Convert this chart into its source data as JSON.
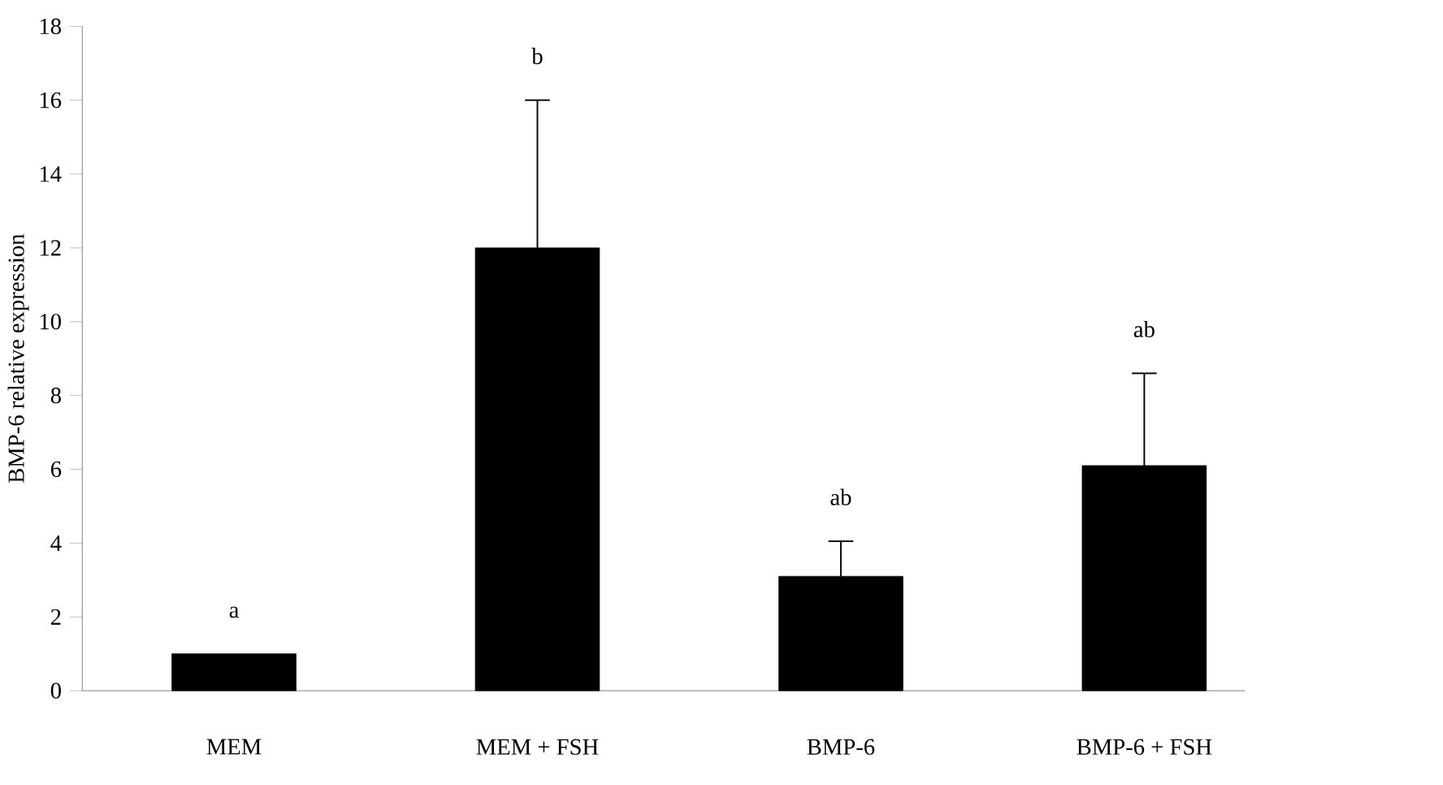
{
  "chart_data": {
    "type": "bar",
    "ylabel": "BMP-6 relative expression",
    "categories": [
      "MEM",
      "MEM + FSH",
      "BMP-6",
      "BMP-6 + FSH"
    ],
    "values": [
      1.0,
      12.0,
      3.1,
      6.1
    ],
    "errors": [
      null,
      [
        12.0,
        16.0
      ],
      [
        3.1,
        4.05
      ],
      [
        6.1,
        8.6
      ]
    ],
    "color": "#000000",
    "ylim": [
      0,
      18
    ],
    "yticks": [
      0,
      2,
      4,
      6,
      8,
      10,
      12,
      14,
      16,
      18
    ],
    "annotations": [
      "a",
      "b",
      "ab",
      "ab"
    ]
  }
}
